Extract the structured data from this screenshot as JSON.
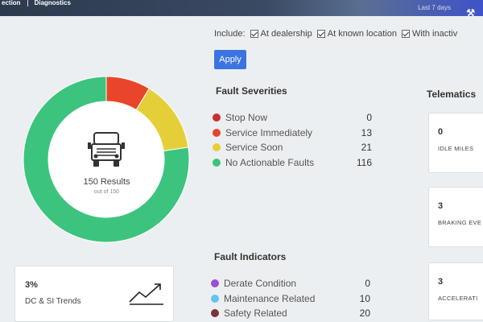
{
  "nav": {
    "item1": "ection",
    "item2": "Diagnostics",
    "right_text": "Last 7 days"
  },
  "include": {
    "label": "Include:",
    "options": [
      {
        "label": "At dealership",
        "checked": true
      },
      {
        "label": "At known location",
        "checked": true
      },
      {
        "label": "With inactiv",
        "checked": true
      }
    ]
  },
  "apply_label": "Apply",
  "donut": {
    "results": "150 Results",
    "out_of": "out of 150",
    "segments": [
      {
        "name": "Stop Now",
        "value": 0,
        "color": "#cc2d2d"
      },
      {
        "name": "Service Immediately",
        "value": 13,
        "color": "#e8452b"
      },
      {
        "name": "Service Soon",
        "value": 21,
        "color": "#e5cf38"
      },
      {
        "name": "No Actionable Faults",
        "value": 116,
        "color": "#3cc47e"
      }
    ]
  },
  "fault_severities": {
    "title": "Fault Severities",
    "items": [
      {
        "label": "Stop Now",
        "value": "0",
        "color": "#cc2d2d"
      },
      {
        "label": "Service Immediately",
        "value": "13",
        "color": "#e8452b"
      },
      {
        "label": "Service Soon",
        "value": "21",
        "color": "#e5cf38"
      },
      {
        "label": "No Actionable Faults",
        "value": "116",
        "color": "#3cc47e"
      }
    ]
  },
  "fault_indicators": {
    "title": "Fault Indicators",
    "items": [
      {
        "label": "Derate Condition",
        "value": "0",
        "color": "#9a4fd6"
      },
      {
        "label": "Maintenance Related",
        "value": "10",
        "color": "#64c3f0"
      },
      {
        "label": "Safety Related",
        "value": "20",
        "color": "#7a3434"
      }
    ]
  },
  "trend": {
    "pct": "3%",
    "label": "DC & SI Trends"
  },
  "telematics": {
    "title": "Telematics",
    "cards": [
      {
        "value": "0",
        "label": "IDLE MILES"
      },
      {
        "value": "3",
        "label": "BRAKING EVE"
      },
      {
        "value": "3",
        "label": "ACCELERATI"
      }
    ]
  }
}
